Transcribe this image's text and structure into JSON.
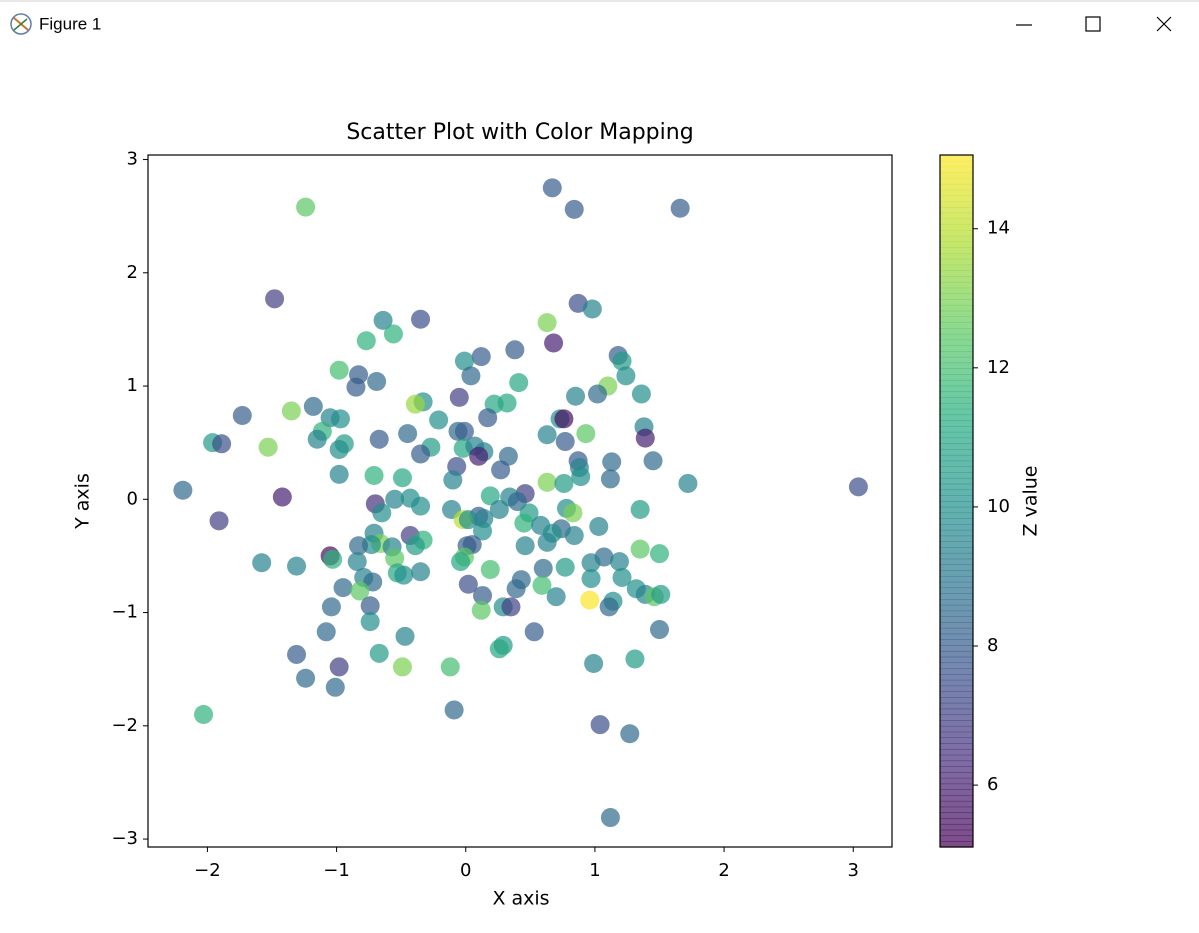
{
  "window": {
    "title": "Figure 1"
  },
  "chart_data": {
    "type": "scatter",
    "title": "Scatter Plot with Color Mapping",
    "x_label": "X axis",
    "y_label": "Y axis",
    "colorbar_label": "Z value",
    "colormap": "viridis",
    "alpha": 0.7,
    "xlim": [
      -2.46,
      3.3
    ],
    "ylim": [
      -3.07,
      3.04
    ],
    "zlim": [
      5.11,
      15.06
    ],
    "xticks": [
      {
        "value": -2,
        "label": "−2"
      },
      {
        "value": -1,
        "label": "−1"
      },
      0,
      1,
      2,
      3
    ],
    "yticks": [
      {
        "value": -3,
        "label": "−3"
      },
      {
        "value": -2,
        "label": "−2"
      },
      {
        "value": -1,
        "label": "−1"
      },
      0,
      1,
      2,
      3
    ],
    "zticks": [
      6,
      8,
      10,
      12,
      14
    ],
    "x": [
      0.67,
      0.84,
      1.66,
      -1.24,
      -1.48,
      0.87,
      0.98,
      -0.64,
      -0.35,
      -0.56,
      0.63,
      0.68,
      -0.77,
      0.38,
      1.18,
      0.12,
      1.21,
      -0.01,
      -0.98,
      -0.83,
      0.04,
      1.24,
      -0.69,
      0.41,
      1.1,
      -0.85,
      0.85,
      1.02,
      1.36,
      -0.05,
      -0.33,
      -0.39,
      0.32,
      0.22,
      -1.18,
      -1.35,
      -1.73,
      0.17,
      -1.05,
      -0.97,
      -0.21,
      0.73,
      0.76,
      1.38,
      0.93,
      -1.11,
      -0.06,
      -0.01,
      0.63,
      -0.45,
      -0.67,
      1.39,
      -1.15,
      -0.94,
      -0.98,
      -1.96,
      -1.89,
      -1.53,
      -0.27,
      -0.02,
      0.07,
      0.14,
      0.77,
      -0.35,
      0.1,
      0.33,
      1.45,
      0.87,
      1.13,
      -0.07,
      0.88,
      0.27,
      -0.71,
      -0.49,
      -0.98,
      0.89,
      1.12,
      -0.1,
      0.63,
      0.76,
      1.72,
      3.04,
      -2.19,
      -1.42,
      0.19,
      0.46,
      0.34,
      0.4,
      -0.55,
      -0.43,
      -0.7,
      -0.35,
      0.78,
      -0.11,
      0.26,
      0.83,
      0.49,
      1.35,
      0.1,
      -0.02,
      -0.65,
      -1.91,
      0.02,
      0.14,
      0.45,
      1.03,
      0.58,
      0.13,
      0.74,
      0.67,
      -0.71,
      0.84,
      -0.43,
      -0.33,
      0.63,
      -0.66,
      -0.73,
      -0.83,
      -0.39,
      -0.57,
      0.46,
      0.01,
      0.05,
      1.35,
      1.5,
      1.07,
      -1.05,
      -0.55,
      -0.01,
      -1.03,
      -0.04,
      -0.84,
      0.97,
      1.19,
      -1.58,
      -1.31,
      0.6,
      0.19,
      0.77,
      -0.35,
      -0.53,
      -0.48,
      -0.79,
      1.21,
      0.97,
      0.43,
      -0.72,
      0.02,
      0.59,
      0.39,
      -0.95,
      1.32,
      -0.82,
      1.39,
      1.46,
      1.51,
      0.13,
      0.7,
      0.96,
      1.14,
      -0.74,
      1.11,
      -1.04,
      0.29,
      0.35,
      0.12,
      -0.74,
      1.5,
      -1.08,
      0.53,
      -0.47,
      0.29,
      0.26,
      -1.31,
      -0.67,
      1.31,
      0.99,
      -0.98,
      -0.49,
      -0.12,
      -1.24,
      -1.01,
      -0.09,
      -2.03,
      1.04,
      1.27,
      1.12
    ],
    "y": [
      2.75,
      2.56,
      2.57,
      2.58,
      1.77,
      1.73,
      1.68,
      1.58,
      1.59,
      1.46,
      1.56,
      1.38,
      1.4,
      1.32,
      1.27,
      1.26,
      1.22,
      1.22,
      1.14,
      1.1,
      1.09,
      1.09,
      1.04,
      1.03,
      1.0,
      0.99,
      0.91,
      0.93,
      0.93,
      0.9,
      0.86,
      0.84,
      0.85,
      0.84,
      0.82,
      0.78,
      0.74,
      0.72,
      0.72,
      0.71,
      0.7,
      0.71,
      0.71,
      0.64,
      0.58,
      0.6,
      0.6,
      0.6,
      0.57,
      0.58,
      0.53,
      0.54,
      0.53,
      0.49,
      0.44,
      0.5,
      0.49,
      0.46,
      0.46,
      0.45,
      0.47,
      0.42,
      0.51,
      0.4,
      0.38,
      0.38,
      0.34,
      0.34,
      0.33,
      0.29,
      0.28,
      0.26,
      0.21,
      0.19,
      0.22,
      0.2,
      0.18,
      0.17,
      0.15,
      0.14,
      0.14,
      0.11,
      0.08,
      0.02,
      0.03,
      0.05,
      0.02,
      -0.02,
      0.0,
      0.01,
      -0.04,
      -0.06,
      -0.08,
      -0.09,
      -0.09,
      -0.12,
      -0.12,
      -0.09,
      -0.15,
      -0.18,
      -0.12,
      -0.19,
      -0.18,
      -0.17,
      -0.21,
      -0.24,
      -0.23,
      -0.28,
      -0.26,
      -0.3,
      -0.3,
      -0.32,
      -0.32,
      -0.36,
      -0.38,
      -0.39,
      -0.4,
      -0.41,
      -0.41,
      -0.42,
      -0.41,
      -0.41,
      -0.4,
      -0.44,
      -0.48,
      -0.51,
      -0.5,
      -0.52,
      -0.51,
      -0.53,
      -0.55,
      -0.55,
      -0.56,
      -0.55,
      -0.56,
      -0.59,
      -0.61,
      -0.62,
      -0.6,
      -0.64,
      -0.65,
      -0.67,
      -0.69,
      -0.69,
      -0.7,
      -0.71,
      -0.73,
      -0.75,
      -0.76,
      -0.79,
      -0.78,
      -0.79,
      -0.81,
      -0.84,
      -0.86,
      -0.84,
      -0.85,
      -0.86,
      -0.89,
      -0.9,
      -0.94,
      -0.95,
      -0.95,
      -0.95,
      -0.95,
      -0.98,
      -1.08,
      -1.15,
      -1.17,
      -1.17,
      -1.21,
      -1.29,
      -1.32,
      -1.37,
      -1.36,
      -1.41,
      -1.45,
      -1.48,
      -1.48,
      -1.48,
      -1.58,
      -1.66,
      -1.86,
      -1.9,
      -1.99,
      -2.07,
      -2.81
    ],
    "z": [
      8,
      8,
      8,
      12.5,
      7,
      7.5,
      9.5,
      9.5,
      7.5,
      11.5,
      13,
      6,
      11.5,
      8,
      8,
      8,
      10.5,
      10,
      12,
      8,
      8.5,
      10,
      8.5,
      11,
      13,
      8,
      9.5,
      8.5,
      10,
      7,
      10,
      13.5,
      11,
      11,
      8.5,
      13,
      8,
      8,
      9.5,
      10,
      10,
      10,
      5.5,
      9.5,
      12.5,
      11.5,
      8.5,
      8,
      9.5,
      8.5,
      8,
      6,
      9.5,
      10.5,
      10,
      10.5,
      7.5,
      13,
      10.5,
      11,
      9.5,
      9.5,
      8,
      8,
      6,
      8.5,
      8.5,
      8,
      8.5,
      7.5,
      9.5,
      8,
      11.5,
      11,
      9.5,
      10,
      8.5,
      9.5,
      13,
      10.5,
      9.5,
      7.5,
      8.5,
      6,
      11,
      7,
      9.5,
      8.5,
      9.5,
      10,
      6.5,
      10,
      10,
      9.5,
      9.5,
      13,
      10.5,
      10.5,
      8,
      14,
      10,
      7,
      10,
      9.5,
      11.5,
      9.5,
      9.5,
      10,
      8.5,
      10,
      9.5,
      9.5,
      7,
      11.5,
      9.5,
      13,
      10,
      8.5,
      10.5,
      9.5,
      9.5,
      8,
      8,
      12.5,
      11.5,
      8.5,
      5.5,
      12.5,
      12.5,
      11.5,
      11,
      9.5,
      9.5,
      9.5,
      9.5,
      9.5,
      8.5,
      12,
      10.5,
      9.5,
      11,
      10,
      9.5,
      10,
      10,
      8.5,
      8.5,
      7.5,
      12,
      8.5,
      8.5,
      10,
      12.5,
      9.5,
      12.5,
      10.5,
      8,
      9.5,
      15,
      10,
      8,
      8.5,
      8.5,
      10,
      7,
      12.5,
      10,
      8.5,
      8.5,
      8,
      9.5,
      10.5,
      11,
      8,
      10.5,
      10.5,
      9.5,
      7,
      13,
      12,
      8.5,
      8.5,
      8.5,
      11.5,
      7.5,
      8.5,
      8.5
    ]
  }
}
